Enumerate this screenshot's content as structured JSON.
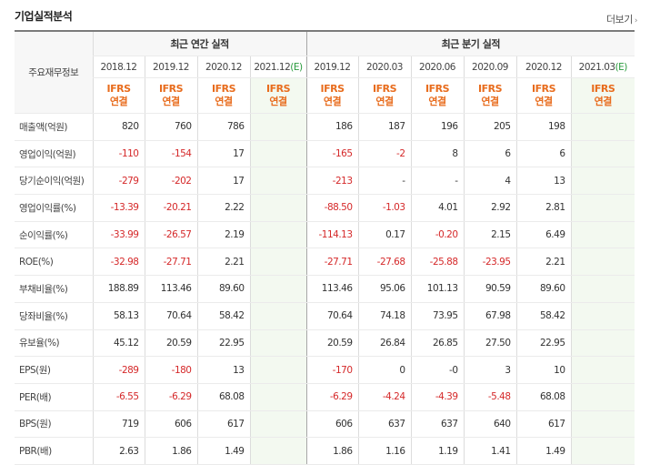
{
  "page": {
    "title": "기업실적분석",
    "more_label": "더보기"
  },
  "table": {
    "row_header": "주요재무정보",
    "groups": {
      "annual": "최근 연간 실적",
      "quarter": "최근 분기 실적"
    },
    "annual_periods": [
      "2018.12",
      "2019.12",
      "2020.12"
    ],
    "annual_est_period": {
      "main": "2021.12",
      "est": "(E)"
    },
    "quarter_periods": [
      "2019.12",
      "2020.03",
      "2020.06",
      "2020.09",
      "2020.12"
    ],
    "quarter_est_period": {
      "main": "2021.03",
      "est": "(E)"
    },
    "ifrs_top": "IFRS",
    "ifrs_bottom": "연결",
    "rows": [
      {
        "label": "매출액(억원)",
        "annual": [
          "820",
          "760",
          "786",
          ""
        ],
        "quarter": [
          "186",
          "187",
          "196",
          "205",
          "198",
          ""
        ]
      },
      {
        "label": "영업이익(억원)",
        "annual": [
          "-110",
          "-154",
          "17",
          ""
        ],
        "quarter": [
          "-165",
          "-2",
          "8",
          "6",
          "6",
          ""
        ]
      },
      {
        "label": "당기순이익(억원)",
        "annual": [
          "-279",
          "-202",
          "17",
          ""
        ],
        "quarter": [
          "-213",
          "-",
          "-",
          "4",
          "13",
          ""
        ]
      },
      {
        "label": "영업이익률(%)",
        "annual": [
          "-13.39",
          "-20.21",
          "2.22",
          ""
        ],
        "quarter": [
          "-88.50",
          "-1.03",
          "4.01",
          "2.92",
          "2.81",
          ""
        ]
      },
      {
        "label": "순이익률(%)",
        "annual": [
          "-33.99",
          "-26.57",
          "2.19",
          ""
        ],
        "quarter": [
          "-114.13",
          "0.17",
          "-0.20",
          "2.15",
          "6.49",
          ""
        ]
      },
      {
        "label": "ROE(%)",
        "annual": [
          "-32.98",
          "-27.71",
          "2.21",
          ""
        ],
        "quarter": [
          "-27.71",
          "-27.68",
          "-25.88",
          "-23.95",
          "2.21",
          ""
        ]
      },
      {
        "label": "부채비율(%)",
        "annual": [
          "188.89",
          "113.46",
          "89.60",
          ""
        ],
        "quarter": [
          "113.46",
          "95.06",
          "101.13",
          "90.59",
          "89.60",
          ""
        ]
      },
      {
        "label": "당좌비율(%)",
        "annual": [
          "58.13",
          "70.64",
          "58.42",
          ""
        ],
        "quarter": [
          "70.64",
          "74.18",
          "73.95",
          "67.98",
          "58.42",
          ""
        ]
      },
      {
        "label": "유보율(%)",
        "annual": [
          "45.12",
          "20.59",
          "22.95",
          ""
        ],
        "quarter": [
          "20.59",
          "26.84",
          "26.85",
          "27.50",
          "22.95",
          ""
        ]
      },
      {
        "label": "EPS(원)",
        "annual": [
          "-289",
          "-180",
          "13",
          ""
        ],
        "quarter": [
          "-170",
          "0",
          "-0",
          "3",
          "10",
          ""
        ]
      },
      {
        "label": "PER(배)",
        "annual": [
          "-6.55",
          "-6.29",
          "68.08",
          ""
        ],
        "quarter": [
          "-6.29",
          "-4.24",
          "-4.39",
          "-5.48",
          "68.08",
          ""
        ]
      },
      {
        "label": "BPS(원)",
        "annual": [
          "719",
          "606",
          "617",
          ""
        ],
        "quarter": [
          "606",
          "637",
          "637",
          "640",
          "617",
          ""
        ]
      },
      {
        "label": "PBR(배)",
        "annual": [
          "2.63",
          "1.86",
          "1.49",
          ""
        ],
        "quarter": [
          "1.86",
          "1.16",
          "1.19",
          "1.41",
          "1.49",
          ""
        ]
      }
    ]
  },
  "colors": {
    "negative": "#d5292a",
    "ifrs": "#e86c1d",
    "estimate": "#2a9b3e",
    "estimate_bg": "#f3f9f0"
  }
}
